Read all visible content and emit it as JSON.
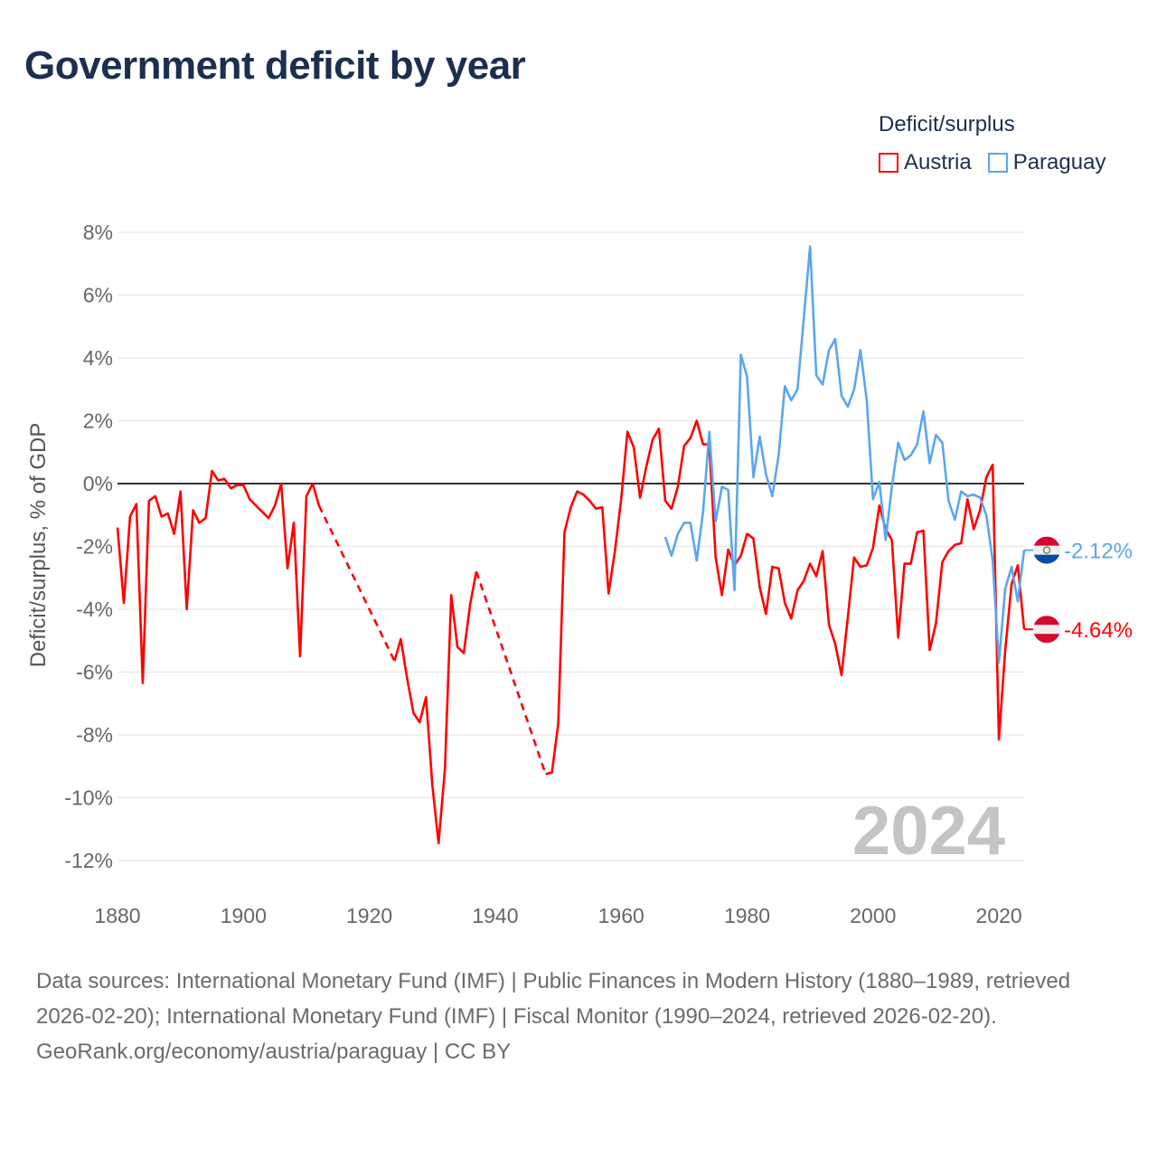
{
  "title": "Government deficit by year",
  "legend": {
    "title": "Deficit/surplus",
    "items": [
      {
        "label": "Austria",
        "color": "#ff0000"
      },
      {
        "label": "Paraguay",
        "color": "#5ba6ee"
      }
    ]
  },
  "footer": {
    "sources": "Data sources: International Monetary Fund (IMF) | Public Finances in Modern History (1880–1989, retrieved 2026-02-20); International Monetary Fund (IMF) | Fiscal Monitor (1990–2024, retrieved 2026-02-20).",
    "credit": "GeoRank.org/economy/austria/paraguay | CC BY"
  },
  "chart_data": {
    "type": "line",
    "title": "Government deficit by year",
    "xlabel": "",
    "ylabel": "Deficit/surplus, % of GDP",
    "xlim": [
      1880,
      2024
    ],
    "ylim": [
      -13,
      8.5
    ],
    "xticks": [
      1880,
      1900,
      1920,
      1940,
      1960,
      1980,
      2000,
      2020
    ],
    "xtick_labels": [
      "1880",
      "1900",
      "1920",
      "1940",
      "1960",
      "1980",
      "2000",
      "2020"
    ],
    "yticks": [
      8,
      6,
      4,
      2,
      0,
      -2,
      -4,
      -6,
      -8,
      -10,
      -12
    ],
    "ytick_labels": [
      "8%",
      "6%",
      "4%",
      "2%",
      "0%",
      "-2%",
      "-4%",
      "-6%",
      "-8%",
      "-10%",
      "-12%"
    ],
    "grid": true,
    "legend_position": "top-right",
    "year_watermark": "2024",
    "series": [
      {
        "name": "Austria",
        "color": "#ff0000",
        "end_label": "-4.64%",
        "flag": "austria-flag",
        "points": [
          [
            1880,
            -1.4
          ],
          [
            1881,
            -3.8
          ],
          [
            1882,
            -1.05
          ],
          [
            1883,
            -0.65
          ],
          [
            1884,
            -6.35
          ],
          [
            1885,
            -0.55
          ],
          [
            1886,
            -0.4
          ],
          [
            1887,
            -1.05
          ],
          [
            1888,
            -0.95
          ],
          [
            1889,
            -1.6
          ],
          [
            1890,
            -0.25
          ],
          [
            1891,
            -4.0
          ],
          [
            1892,
            -0.85
          ],
          [
            1893,
            -1.25
          ],
          [
            1894,
            -1.1
          ],
          [
            1895,
            0.4
          ],
          [
            1896,
            0.1
          ],
          [
            1897,
            0.15
          ],
          [
            1898,
            -0.15
          ],
          [
            1899,
            -0.05
          ],
          [
            1900,
            -0.05
          ],
          [
            1901,
            -0.5
          ],
          [
            1902,
            -0.7
          ],
          [
            1903,
            -0.9
          ],
          [
            1904,
            -1.1
          ],
          [
            1905,
            -0.7
          ],
          [
            1906,
            0.0
          ],
          [
            1907,
            -2.7
          ],
          [
            1908,
            -1.25
          ],
          [
            1909,
            -5.5
          ],
          [
            1910,
            -0.4
          ],
          [
            1911,
            0.0
          ],
          [
            1912,
            -0.7
          ],
          [
            1924,
            -5.65
          ],
          [
            1925,
            -4.95
          ],
          [
            1926,
            -6.2
          ],
          [
            1927,
            -7.3
          ],
          [
            1928,
            -7.6
          ],
          [
            1929,
            -6.8
          ],
          [
            1930,
            -9.6
          ],
          [
            1931,
            -11.45
          ],
          [
            1932,
            -9.1
          ],
          [
            1933,
            -3.55
          ],
          [
            1934,
            -5.2
          ],
          [
            1935,
            -5.4
          ],
          [
            1936,
            -3.85
          ],
          [
            1937,
            -2.8
          ],
          [
            1948,
            -9.25
          ],
          [
            1949,
            -9.2
          ],
          [
            1950,
            -7.65
          ],
          [
            1951,
            -1.55
          ],
          [
            1952,
            -0.75
          ],
          [
            1953,
            -0.25
          ],
          [
            1954,
            -0.35
          ],
          [
            1955,
            -0.55
          ],
          [
            1956,
            -0.8
          ],
          [
            1957,
            -0.75
          ],
          [
            1958,
            -3.5
          ],
          [
            1959,
            -2.15
          ],
          [
            1960,
            -0.5
          ],
          [
            1961,
            1.65
          ],
          [
            1962,
            1.15
          ],
          [
            1963,
            -0.45
          ],
          [
            1964,
            0.55
          ],
          [
            1965,
            1.4
          ],
          [
            1966,
            1.75
          ],
          [
            1967,
            -0.55
          ],
          [
            1968,
            -0.8
          ],
          [
            1969,
            -0.1
          ],
          [
            1970,
            1.2
          ],
          [
            1971,
            1.45
          ],
          [
            1972,
            2.0
          ],
          [
            1973,
            1.25
          ],
          [
            1974,
            1.25
          ],
          [
            1975,
            -2.35
          ],
          [
            1976,
            -3.55
          ],
          [
            1977,
            -2.1
          ],
          [
            1978,
            -2.6
          ],
          [
            1979,
            -2.3
          ],
          [
            1980,
            -1.6
          ],
          [
            1981,
            -1.75
          ],
          [
            1982,
            -3.3
          ],
          [
            1983,
            -4.15
          ],
          [
            1984,
            -2.65
          ],
          [
            1985,
            -2.7
          ],
          [
            1986,
            -3.8
          ],
          [
            1987,
            -4.3
          ],
          [
            1988,
            -3.4
          ],
          [
            1989,
            -3.1
          ],
          [
            1990,
            -2.55
          ],
          [
            1991,
            -2.95
          ],
          [
            1992,
            -2.15
          ],
          [
            1993,
            -4.5
          ],
          [
            1994,
            -5.1
          ],
          [
            1995,
            -6.1
          ],
          [
            1996,
            -4.25
          ],
          [
            1997,
            -2.35
          ],
          [
            1998,
            -2.65
          ],
          [
            1999,
            -2.6
          ],
          [
            2000,
            -2.05
          ],
          [
            2001,
            -0.7
          ],
          [
            2002,
            -1.45
          ],
          [
            2003,
            -1.8
          ],
          [
            2004,
            -4.9
          ],
          [
            2005,
            -2.55
          ],
          [
            2006,
            -2.55
          ],
          [
            2007,
            -1.55
          ],
          [
            2008,
            -1.5
          ],
          [
            2009,
            -5.3
          ],
          [
            2010,
            -4.45
          ],
          [
            2011,
            -2.5
          ],
          [
            2012,
            -2.15
          ],
          [
            2013,
            -1.95
          ],
          [
            2014,
            -1.9
          ],
          [
            2015,
            -0.5
          ],
          [
            2016,
            -1.45
          ],
          [
            2017,
            -0.85
          ],
          [
            2018,
            0.2
          ],
          [
            2019,
            0.6
          ],
          [
            2020,
            -8.15
          ],
          [
            2021,
            -5.3
          ],
          [
            2022,
            -3.2
          ],
          [
            2023,
            -2.6
          ],
          [
            2024,
            -4.64
          ]
        ]
      },
      {
        "name": "Paraguay",
        "color": "#5ba6ee",
        "end_label": "-2.12%",
        "flag": "paraguay-flag",
        "points": [
          [
            1967,
            -1.7
          ],
          [
            1968,
            -2.3
          ],
          [
            1969,
            -1.6
          ],
          [
            1970,
            -1.25
          ],
          [
            1971,
            -1.25
          ],
          [
            1972,
            -2.45
          ],
          [
            1973,
            -0.9
          ],
          [
            1974,
            1.65
          ],
          [
            1975,
            -1.2
          ],
          [
            1976,
            -0.1
          ],
          [
            1977,
            -0.2
          ],
          [
            1978,
            -3.4
          ],
          [
            1979,
            4.1
          ],
          [
            1980,
            3.4
          ],
          [
            1981,
            0.2
          ],
          [
            1982,
            1.5
          ],
          [
            1983,
            0.3
          ],
          [
            1984,
            -0.4
          ],
          [
            1985,
            0.9
          ],
          [
            1986,
            3.1
          ],
          [
            1987,
            2.65
          ],
          [
            1988,
            3.0
          ],
          [
            1989,
            5.25
          ],
          [
            1990,
            7.55
          ],
          [
            1991,
            3.45
          ],
          [
            1992,
            3.15
          ],
          [
            1993,
            4.25
          ],
          [
            1994,
            4.6
          ],
          [
            1995,
            2.8
          ],
          [
            1996,
            2.45
          ],
          [
            1997,
            3.0
          ],
          [
            1998,
            4.25
          ],
          [
            1999,
            2.65
          ],
          [
            2000,
            -0.5
          ],
          [
            2001,
            0.05
          ],
          [
            2002,
            -1.8
          ],
          [
            2003,
            -0.1
          ],
          [
            2004,
            1.3
          ],
          [
            2005,
            0.75
          ],
          [
            2006,
            0.9
          ],
          [
            2007,
            1.25
          ],
          [
            2008,
            2.3
          ],
          [
            2009,
            0.65
          ],
          [
            2010,
            1.55
          ],
          [
            2011,
            1.3
          ],
          [
            2012,
            -0.55
          ],
          [
            2013,
            -1.15
          ],
          [
            2014,
            -0.25
          ],
          [
            2015,
            -0.4
          ],
          [
            2016,
            -0.35
          ],
          [
            2017,
            -0.45
          ],
          [
            2018,
            -1.0
          ],
          [
            2019,
            -2.45
          ],
          [
            2020,
            -5.7
          ],
          [
            2021,
            -3.35
          ],
          [
            2022,
            -2.65
          ],
          [
            2023,
            -3.75
          ],
          [
            2024,
            -2.12
          ]
        ]
      }
    ]
  }
}
